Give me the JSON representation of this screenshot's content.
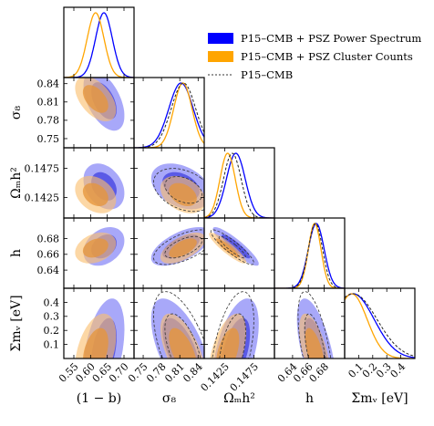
{
  "chart_data": {
    "type": "scatter",
    "subtype": "triangle-corner-plot",
    "title": "",
    "parameters": [
      {
        "key": "b",
        "label": "(1 − b)",
        "range": [
          0.52,
          0.73
        ],
        "ticks": [
          0.55,
          0.6,
          0.65,
          0.7
        ],
        "tick_labels": [
          "0.55",
          "0.60",
          "0.65",
          "0.70"
        ]
      },
      {
        "key": "s8",
        "label": "σ₈",
        "range": [
          0.735,
          0.85
        ],
        "ticks": [
          0.75,
          0.78,
          0.81,
          0.84
        ],
        "tick_labels": [
          "0.75",
          "0.78",
          "0.81",
          "0.84"
        ]
      },
      {
        "key": "om",
        "label": "Ωₘh²",
        "range": [
          0.139,
          0.151
        ],
        "ticks": [
          0.1425,
          0.1475
        ],
        "tick_labels": [
          "0.1425",
          "0.1475"
        ]
      },
      {
        "key": "h",
        "label": "h",
        "range": [
          0.617,
          0.706
        ],
        "ticks": [
          0.64,
          0.66,
          0.68
        ],
        "tick_labels": [
          "0.64",
          "0.66",
          "0.68"
        ]
      },
      {
        "key": "mnu",
        "label": "Σmᵥ [eV]",
        "range": [
          0.0,
          0.5
        ],
        "ticks": [
          0.1,
          0.2,
          0.3,
          0.4
        ],
        "tick_labels": [
          "0.1",
          "0.2",
          "0.3",
          "0.4"
        ]
      }
    ],
    "legend_position": "top-right",
    "series": [
      {
        "name": "P15–CMB + PSZ Power Spectrum",
        "color": "#0000ff",
        "style": "filled",
        "mean": {
          "b": 0.64,
          "s8": 0.812,
          "om": 0.1444,
          "h": 0.67,
          "mnu": 0.06
        },
        "sigma": {
          "b": 0.025,
          "s8": 0.02,
          "om": 0.0016,
          "h": 0.01,
          "mnu": 0.15
        }
      },
      {
        "name": "P15–CMB + PSZ Cluster Counts",
        "color": "#ffa500",
        "style": "filled",
        "mean": {
          "b": 0.615,
          "s8": 0.815,
          "om": 0.143,
          "h": 0.668,
          "mnu": 0.05
        },
        "sigma": {
          "b": 0.025,
          "s8": 0.015,
          "om": 0.0013,
          "h": 0.008,
          "mnu": 0.11
        }
      },
      {
        "name": "P15–CMB",
        "color": "#333333",
        "style": "dashed",
        "mean": {
          "s8": 0.816,
          "om": 0.1438,
          "h": 0.669,
          "mnu": 0.06
        },
        "sigma": {
          "s8": 0.02,
          "om": 0.0015,
          "h": 0.009,
          "mnu": 0.17
        }
      }
    ],
    "correlations": {
      "b|s8": -0.5,
      "b|om": -0.3,
      "b|h": 0.3,
      "b|mnu": 0.4,
      "s8|om": -0.35,
      "s8|h": 0.6,
      "s8|mnu": -0.6,
      "om|h": -0.9,
      "om|mnu": 0.5,
      "h|mnu": -0.6
    }
  }
}
